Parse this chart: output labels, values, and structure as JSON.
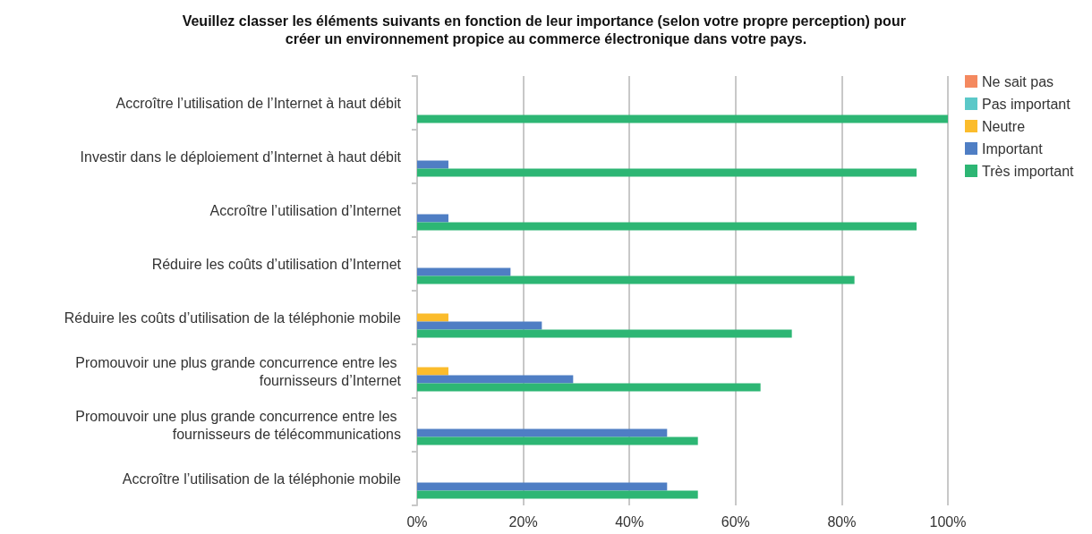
{
  "chart_data": {
    "type": "bar",
    "orientation": "horizontal",
    "title": "Veuillez classer les éléments suivants en fonction de leur importance (selon votre propre perception) pour créer un environnement propice au commerce électronique dans votre pays.",
    "categories": [
      "Accroître l’utilisation de l’Internet à haut débit",
      "Investir dans le déploiement d’Internet à haut débit",
      "Accroître l’utilisation d’Internet",
      "Réduire les coûts d’utilisation d’Internet",
      "Réduire les coûts d’utilisation de la téléphonie mobile",
      "Promouvoir une plus grande concurrence entre les fournisseurs d’Internet",
      "Promouvoir une plus grande concurrence entre les fournisseurs de télécommunications",
      "Accroître l’utilisation de la téléphonie mobile"
    ],
    "series": [
      {
        "name": "Ne sait pas",
        "color": "#f4895f",
        "values": [
          0,
          0,
          0,
          0,
          0,
          0,
          0,
          0
        ]
      },
      {
        "name": "Pas important",
        "color": "#5bc8c8",
        "values": [
          0,
          0,
          0,
          0,
          0,
          0,
          0,
          0
        ]
      },
      {
        "name": "Neutre",
        "color": "#fbbc2c",
        "values": [
          0,
          0,
          0,
          0,
          5.9,
          5.9,
          0,
          0
        ]
      },
      {
        "name": "Important",
        "color": "#4f7ec4",
        "values": [
          0,
          5.9,
          5.9,
          17.6,
          23.5,
          29.4,
          47.1,
          47.1
        ]
      },
      {
        "name": "Très important",
        "color": "#2db674",
        "values": [
          100,
          94.1,
          94.1,
          82.4,
          70.6,
          64.7,
          52.9,
          52.9
        ]
      }
    ],
    "xlim": [
      0,
      100
    ],
    "xticks": [
      {
        "value": 0,
        "label": "0%"
      },
      {
        "value": 20,
        "label": "20%"
      },
      {
        "value": 40,
        "label": "40%"
      },
      {
        "value": 60,
        "label": "60%"
      },
      {
        "value": 80,
        "label": "80%"
      },
      {
        "value": 100,
        "label": "100%"
      }
    ],
    "grid": "x",
    "legend": "top right"
  }
}
